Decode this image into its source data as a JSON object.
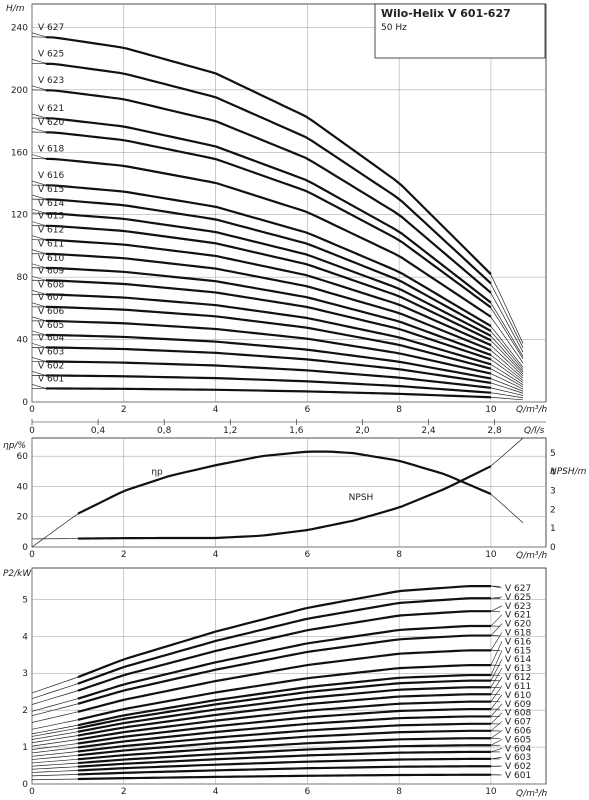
{
  "header": {
    "title": "Wilo-Helix V 601-627",
    "subtitle": "50 Hz"
  },
  "chart_data": [
    {
      "type": "line",
      "name": "head",
      "ylabel": "H/m",
      "xlabel": "Q/m³/h",
      "x2label": "Q/l/s",
      "xlim": [
        0,
        11.2
      ],
      "ylim": [
        0,
        255
      ],
      "xticks": [
        0,
        2,
        4,
        6,
        8,
        10
      ],
      "yticks": [
        0,
        40,
        80,
        120,
        160,
        200,
        240
      ],
      "x2ticks": [
        "0",
        "0,4",
        "0,8",
        "1,2",
        "1,6",
        "2,0",
        "2,4",
        "2,8"
      ],
      "grid": true,
      "series": [
        {
          "name": "V 627",
          "h0": 234
        },
        {
          "name": "V 625",
          "h0": 217
        },
        {
          "name": "V 623",
          "h0": 200
        },
        {
          "name": "V 621",
          "h0": 182
        },
        {
          "name": "V 620",
          "h0": 173
        },
        {
          "name": "V 618",
          "h0": 156
        },
        {
          "name": "V 616",
          "h0": 139
        },
        {
          "name": "V 615",
          "h0": 130
        },
        {
          "name": "V 614",
          "h0": 121
        },
        {
          "name": "V 613",
          "h0": 113
        },
        {
          "name": "V 612",
          "h0": 104
        },
        {
          "name": "V 611",
          "h0": 95
        },
        {
          "name": "V 610",
          "h0": 86
        },
        {
          "name": "V 609",
          "h0": 78
        },
        {
          "name": "V 608",
          "h0": 69
        },
        {
          "name": "V 607",
          "h0": 61
        },
        {
          "name": "V 606",
          "h0": 52
        },
        {
          "name": "V 605",
          "h0": 43
        },
        {
          "name": "V 604",
          "h0": 35
        },
        {
          "name": "V 603",
          "h0": 26
        },
        {
          "name": "V 602",
          "h0": 17
        },
        {
          "name": "V 601",
          "h0": 8.7
        }
      ],
      "curve_shape": {
        "q": [
          0,
          0.5,
          2,
          4,
          6,
          8,
          10,
          10.7
        ],
        "rel": [
          1.0,
          0.998,
          0.97,
          0.9,
          0.78,
          0.6,
          0.35,
          0.16
        ]
      },
      "bold_range": [
        0.3,
        10
      ]
    },
    {
      "type": "line",
      "name": "efficiency-npsh",
      "ylabel": "ηp/%",
      "y2label": "NPSH/m",
      "xlabel": "Q/m³/h",
      "xlim": [
        0,
        11.2
      ],
      "ylim": [
        0,
        72
      ],
      "y2lim": [
        0,
        5.8
      ],
      "xticks": [
        0,
        2,
        4,
        6,
        8,
        10
      ],
      "yticks": [
        0,
        20,
        40,
        60
      ],
      "y2ticks": [
        0,
        1,
        2,
        3,
        4,
        5
      ],
      "grid": true,
      "series": [
        {
          "name": "ηp",
          "axis": "left",
          "x": [
            0,
            1,
            2,
            3,
            4,
            5,
            6,
            6.5,
            7,
            8,
            9,
            10,
            10.7
          ],
          "y": [
            0,
            22,
            37,
            47,
            54,
            60,
            63,
            63,
            62,
            57,
            48,
            35,
            16
          ],
          "bold_range": [
            1,
            10
          ]
        },
        {
          "name": "NPSH",
          "axis": "right",
          "x": [
            0,
            1,
            2,
            3,
            4,
            5,
            6,
            7,
            8,
            9,
            10,
            10.7
          ],
          "y": [
            0.43,
            0.45,
            0.47,
            0.48,
            0.48,
            0.6,
            0.9,
            1.4,
            2.1,
            3.1,
            4.3,
            5.8
          ],
          "bold_range": [
            1,
            10
          ]
        }
      ]
    },
    {
      "type": "line",
      "name": "power",
      "ylabel": "P2/kW",
      "xlabel": "Q/m³/h",
      "xlim": [
        0,
        11.2
      ],
      "ylim": [
        0,
        5.85
      ],
      "xticks": [
        0,
        2,
        4,
        6,
        8,
        10
      ],
      "yticks": [
        0,
        1,
        2,
        3,
        4,
        5
      ],
      "grid": true,
      "series": [
        {
          "name": "V 627",
          "p": 5.36
        },
        {
          "name": "V 625",
          "p": 5.03
        },
        {
          "name": "V 623",
          "p": 4.68
        },
        {
          "name": "V 621",
          "p": 4.28
        },
        {
          "name": "V 620",
          "p": 4.02
        },
        {
          "name": "V 618",
          "p": 3.62
        },
        {
          "name": "V 616",
          "p": 3.22
        },
        {
          "name": "V 615",
          "p": 2.95
        },
        {
          "name": "V 614",
          "p": 2.8
        },
        {
          "name": "V 613",
          "p": 2.62
        },
        {
          "name": "V 612",
          "p": 2.43
        },
        {
          "name": "V 611",
          "p": 2.23
        },
        {
          "name": "V 610",
          "p": 2.03
        },
        {
          "name": "V 609",
          "p": 1.83
        },
        {
          "name": "V 608",
          "p": 1.63
        },
        {
          "name": "V 607",
          "p": 1.44
        },
        {
          "name": "V 606",
          "p": 1.24
        },
        {
          "name": "V 605",
          "p": 1.05
        },
        {
          "name": "V 604",
          "p": 0.87
        },
        {
          "name": "V 603",
          "p": 0.68
        },
        {
          "name": "V 602",
          "p": 0.48
        },
        {
          "name": "V 601",
          "p": 0.25
        }
      ],
      "curve_shape": {
        "q": [
          0,
          1,
          2,
          4,
          6,
          8,
          9.5,
          10,
          11
        ],
        "rel": [
          0.46,
          0.54,
          0.63,
          0.77,
          0.89,
          0.975,
          1.0,
          1.0,
          0.99
        ]
      },
      "bold_range": [
        1,
        10
      ]
    }
  ]
}
